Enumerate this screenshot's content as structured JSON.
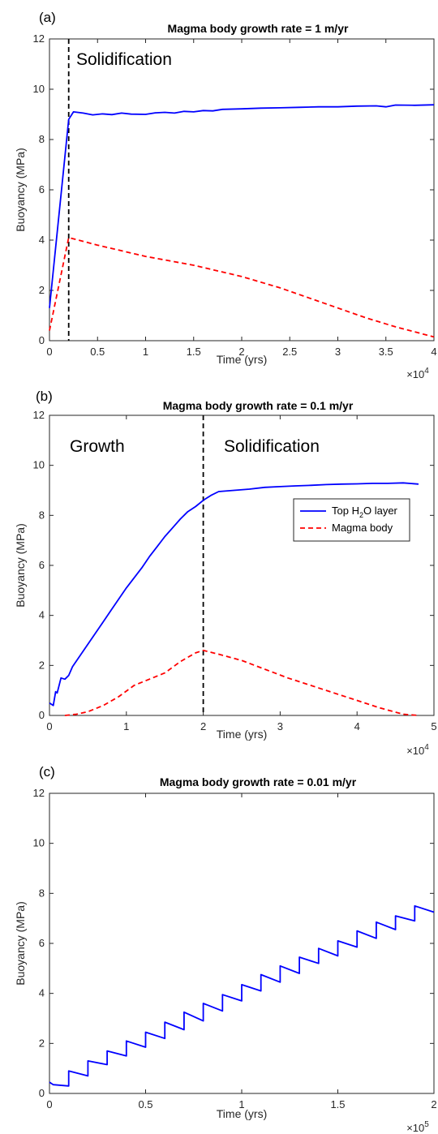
{
  "chart_data": [
    {
      "type": "line",
      "panel_label": "(a)",
      "title": "Magma body growth rate = 1 m/yr",
      "xlabel": "Time (yrs)",
      "ylabel": "Buoyancy (MPa)",
      "x_multiplier": "×10^4",
      "xlim": [
        0,
        40000
      ],
      "ylim": [
        0,
        12
      ],
      "xticks": [
        0,
        5000,
        10000,
        15000,
        20000,
        25000,
        30000,
        35000,
        40000
      ],
      "xtick_labels": [
        "0",
        "0.5",
        "1",
        "1.5",
        "2",
        "2.5",
        "3",
        "3.5",
        "4"
      ],
      "yticks": [
        0,
        2,
        4,
        6,
        8,
        10,
        12
      ],
      "ytick_labels": [
        "0",
        "2",
        "4",
        "6",
        "8",
        "10",
        "12"
      ],
      "grid": false,
      "annotations": [
        {
          "text": "Solidification"
        }
      ],
      "vline": {
        "x": 2000,
        "style": "dashed",
        "color": "#000000"
      },
      "series": [
        {
          "color": "#0000ff",
          "style": "solid",
          "x": [
            0,
            2000,
            2500,
            3500,
            4500,
            5500,
            6500,
            7500,
            8500,
            10000,
            11000,
            12000,
            13000,
            14000,
            15000,
            16000,
            17000,
            18000,
            20000,
            22000,
            24000,
            26000,
            28000,
            30000,
            32000,
            34000,
            35000,
            36000,
            38000,
            40000
          ],
          "y": [
            1.3,
            8.8,
            9.1,
            9.05,
            8.98,
            9.02,
            8.99,
            9.05,
            9.01,
            9.0,
            9.06,
            9.08,
            9.05,
            9.12,
            9.1,
            9.15,
            9.14,
            9.2,
            9.22,
            9.25,
            9.26,
            9.28,
            9.3,
            9.3,
            9.33,
            9.34,
            9.3,
            9.37,
            9.36,
            9.38
          ]
        },
        {
          "color": "#ff0000",
          "style": "dashed",
          "x": [
            0,
            2000,
            5000,
            10000,
            15000,
            20000,
            24000,
            27000,
            30000,
            33000,
            36000,
            38000,
            40000
          ],
          "y": [
            0.4,
            4.1,
            3.8,
            3.35,
            3.0,
            2.55,
            2.1,
            1.7,
            1.3,
            0.9,
            0.55,
            0.35,
            0.15
          ]
        }
      ]
    },
    {
      "type": "line",
      "panel_label": "(b)",
      "title": "Magma body growth rate = 0.1 m/yr",
      "xlabel": "Time (yrs)",
      "ylabel": "Buoyancy (MPa)",
      "x_multiplier": "×10^4",
      "xlim": [
        0,
        50000
      ],
      "ylim": [
        0,
        12
      ],
      "xticks": [
        0,
        10000,
        20000,
        30000,
        40000,
        50000
      ],
      "xtick_labels": [
        "0",
        "1",
        "2",
        "3",
        "4",
        "5"
      ],
      "yticks": [
        0,
        2,
        4,
        6,
        8,
        10,
        12
      ],
      "ytick_labels": [
        "0",
        "2",
        "4",
        "6",
        "8",
        "10",
        "12"
      ],
      "grid": false,
      "annotations": [
        {
          "text": "Growth"
        },
        {
          "text": "Solidification"
        }
      ],
      "vline": {
        "x": 20000,
        "style": "dashed",
        "color": "#000000"
      },
      "legend": {
        "placement": "center-right"
      },
      "series": [
        {
          "name_main": "Top H",
          "name_sub": "2",
          "name_tail": "O layer",
          "color": "#0000ff",
          "style": "solid",
          "x": [
            0,
            500,
            800,
            1000,
            1500,
            2000,
            2500,
            3000,
            4000,
            5000,
            6000,
            7000,
            8000,
            9000,
            10000,
            11000,
            12000,
            13000,
            14000,
            15000,
            16000,
            17000,
            18000,
            19000,
            20000,
            21000,
            22000,
            24000,
            26000,
            28000,
            30000,
            32000,
            34000,
            36000,
            38000,
            40000,
            42000,
            44000,
            46000,
            48000
          ],
          "y": [
            0.5,
            0.4,
            0.95,
            0.9,
            1.5,
            1.45,
            1.6,
            1.95,
            2.4,
            2.85,
            3.3,
            3.75,
            4.2,
            4.65,
            5.1,
            5.5,
            5.9,
            6.35,
            6.75,
            7.15,
            7.5,
            7.85,
            8.15,
            8.35,
            8.6,
            8.8,
            8.95,
            9.0,
            9.05,
            9.12,
            9.15,
            9.18,
            9.2,
            9.23,
            9.25,
            9.26,
            9.28,
            9.28,
            9.3,
            9.25
          ]
        },
        {
          "name": "Magma body",
          "color": "#ff0000",
          "style": "dashed",
          "x": [
            2000,
            3500,
            5000,
            7000,
            9000,
            11000,
            13000,
            15000,
            17000,
            19000,
            20000,
            22000,
            25000,
            28000,
            31000,
            34000,
            37000,
            40000,
            43000,
            46000,
            48000
          ],
          "y": [
            0.0,
            0.05,
            0.15,
            0.4,
            0.75,
            1.2,
            1.45,
            1.7,
            2.15,
            2.5,
            2.6,
            2.45,
            2.2,
            1.85,
            1.5,
            1.2,
            0.9,
            0.6,
            0.3,
            0.05,
            0.0
          ]
        }
      ]
    },
    {
      "type": "line",
      "panel_label": "(c)",
      "title": "Magma body growth rate = 0.01 m/yr",
      "xlabel": "Time (yrs)",
      "ylabel": "Buoyancy (MPa)",
      "x_multiplier": "×10^5",
      "xlim": [
        0,
        200000
      ],
      "ylim": [
        0,
        12
      ],
      "xticks": [
        0,
        50000,
        100000,
        150000,
        200000
      ],
      "xtick_labels": [
        "0",
        "0.5",
        "1",
        "1.5",
        "2"
      ],
      "yticks": [
        0,
        2,
        4,
        6,
        8,
        10,
        12
      ],
      "ytick_labels": [
        "0",
        "2",
        "4",
        "6",
        "8",
        "10",
        "12"
      ],
      "grid": false,
      "series": [
        {
          "color": "#0000ff",
          "style": "solid",
          "sawtooth": true,
          "x": [
            0,
            2000,
            10000,
            10000,
            20000,
            20000,
            30000,
            30000,
            40000,
            40000,
            50000,
            50000,
            60000,
            60000,
            70000,
            70000,
            80000,
            80000,
            90000,
            90000,
            100000,
            100000,
            110000,
            110000,
            120000,
            120000,
            130000,
            130000,
            140000,
            140000,
            150000,
            150000,
            160000,
            160000,
            170000,
            170000,
            180000,
            180000,
            190000,
            190000,
            200000
          ],
          "y": [
            0.45,
            0.35,
            0.3,
            0.9,
            0.7,
            1.3,
            1.15,
            1.7,
            1.5,
            2.1,
            1.85,
            2.45,
            2.2,
            2.85,
            2.55,
            3.25,
            2.9,
            3.6,
            3.3,
            3.95,
            3.7,
            4.35,
            4.1,
            4.75,
            4.45,
            5.1,
            4.8,
            5.45,
            5.2,
            5.8,
            5.5,
            6.1,
            5.85,
            6.5,
            6.2,
            6.85,
            6.55,
            7.1,
            6.9,
            7.5,
            7.25
          ]
        }
      ]
    }
  ]
}
